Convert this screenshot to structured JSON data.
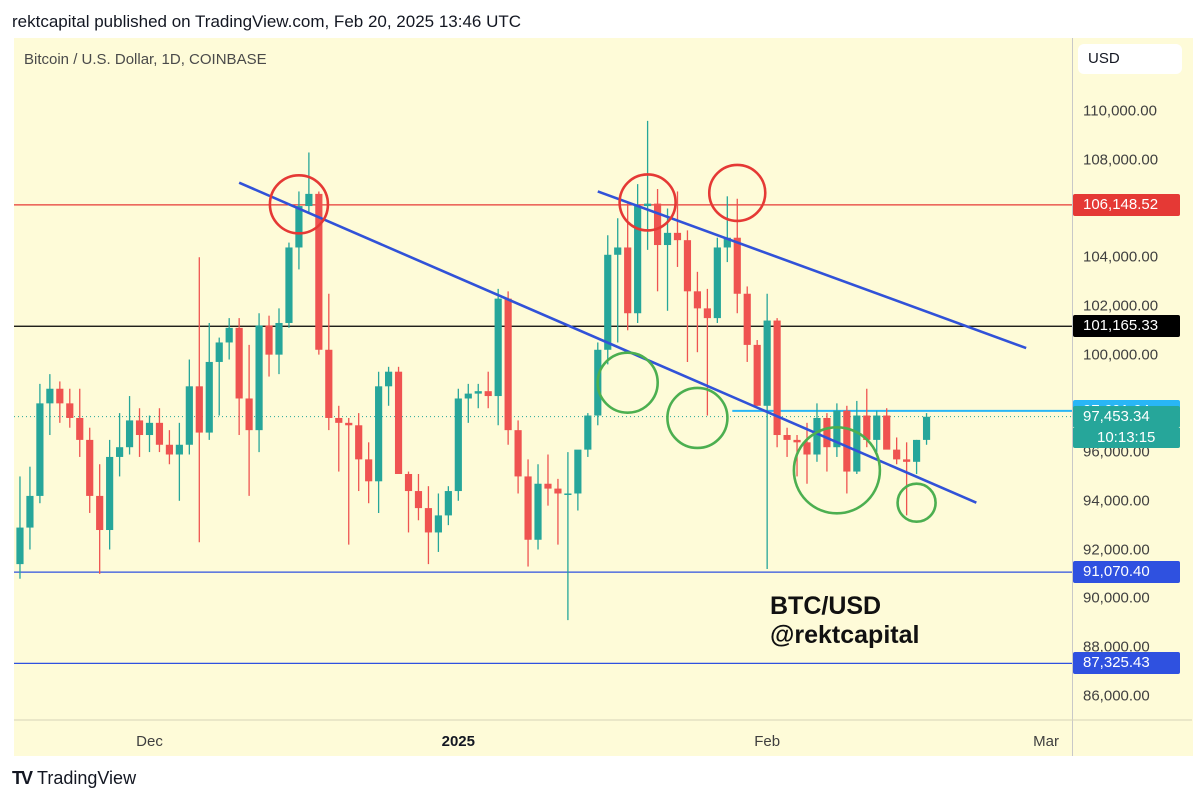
{
  "header": {
    "text": "rektcapital published on TradingView.com, Feb 20, 2025 13:46 UTC"
  },
  "chart_data": {
    "type": "candlestick",
    "title": "Bitcoin / U.S. Dollar, 1D, COINBASE",
    "currency": "USD",
    "y_ticks": [
      {
        "value": 110000,
        "label": "110,000.00"
      },
      {
        "value": 108000,
        "label": "108,000.00"
      },
      {
        "value": 104000,
        "label": "104,000.00"
      },
      {
        "value": 102000,
        "label": "102,000.00"
      },
      {
        "value": 100000,
        "label": "100,000.00"
      },
      {
        "value": 96000,
        "label": "96,000.00"
      },
      {
        "value": 94000,
        "label": "94,000.00"
      },
      {
        "value": 92000,
        "label": "92,000.00"
      },
      {
        "value": 90000,
        "label": "90,000.00"
      },
      {
        "value": 88000,
        "label": "88,000.00"
      },
      {
        "value": 86000,
        "label": "86,000.00"
      }
    ],
    "ylim": [
      85000,
      113000
    ],
    "x_ticks": [
      {
        "label": "Dec",
        "day": 13,
        "bold": false
      },
      {
        "label": "2025",
        "day": 44,
        "bold": true
      },
      {
        "label": "Feb",
        "day": 75,
        "bold": false
      },
      {
        "label": "Mar",
        "day": 103,
        "bold": false
      }
    ],
    "day_range": [
      -0.6,
      105.6
    ],
    "horizontal_levels": [
      {
        "name": "resistance-red",
        "value": 106148.52,
        "label": "106,148.52",
        "color": "#e53935"
      },
      {
        "name": "level-black",
        "value": 101165.33,
        "label": "101,165.33",
        "color": "#000000"
      },
      {
        "name": "support-blue-1",
        "value": 91070.4,
        "label": "91,070.40",
        "color": "#2f51e0"
      },
      {
        "name": "support-blue-2",
        "value": 87325.43,
        "label": "87,325.43",
        "color": "#2f51e0"
      },
      {
        "name": "level-cyan",
        "value": 97691.64,
        "label": "97,691.64",
        "color": "#29b6f6"
      }
    ],
    "last_price": {
      "value": 97453.34,
      "label": "97,453.34",
      "countdown": "10:13:15",
      "color": "#26a69a"
    },
    "trendlines": [
      {
        "name": "lower-trendline",
        "from": {
          "day": 22,
          "price": 107060
        },
        "to": {
          "day": 96,
          "price": 93920
        },
        "color": "#3152d8"
      },
      {
        "name": "upper-trendline",
        "from": {
          "day": 58,
          "price": 106700
        },
        "to": {
          "day": 101,
          "price": 100270
        },
        "color": "#3152d8"
      }
    ],
    "circles": [
      {
        "name": "red-circle-top-1",
        "day": 28,
        "price": 106170,
        "r": 29,
        "color": "#e53935"
      },
      {
        "name": "red-circle-top-2",
        "day": 63,
        "price": 106250,
        "r": 28,
        "color": "#e53935"
      },
      {
        "name": "red-circle-top-3",
        "day": 72,
        "price": 106640,
        "r": 28,
        "color": "#e53935"
      },
      {
        "name": "green-circle-1",
        "day": 61,
        "price": 98850,
        "r": 30,
        "color": "#4caf50"
      },
      {
        "name": "green-circle-2",
        "day": 68,
        "price": 97400,
        "r": 30,
        "color": "#4caf50"
      },
      {
        "name": "green-circle-3",
        "day": 82,
        "price": 95250,
        "r": 43,
        "color": "#4caf50"
      },
      {
        "name": "green-circle-4",
        "day": 90,
        "price": 93920,
        "r": 19,
        "color": "#4caf50"
      }
    ],
    "candles": [
      {
        "o": 91400,
        "h": 95000,
        "l": 90800,
        "c": 92900
      },
      {
        "o": 92900,
        "h": 95400,
        "l": 92000,
        "c": 94200
      },
      {
        "o": 94200,
        "h": 98800,
        "l": 93900,
        "c": 98000
      },
      {
        "o": 98000,
        "h": 99200,
        "l": 96700,
        "c": 98600
      },
      {
        "o": 98600,
        "h": 98900,
        "l": 97200,
        "c": 98000
      },
      {
        "o": 98000,
        "h": 98600,
        "l": 97000,
        "c": 97400
      },
      {
        "o": 97400,
        "h": 98600,
        "l": 95800,
        "c": 96500
      },
      {
        "o": 96500,
        "h": 97000,
        "l": 93500,
        "c": 94200
      },
      {
        "o": 94200,
        "h": 95500,
        "l": 91000,
        "c": 92800
      },
      {
        "o": 92800,
        "h": 96500,
        "l": 92000,
        "c": 95800
      },
      {
        "o": 95800,
        "h": 97600,
        "l": 95000,
        "c": 96200
      },
      {
        "o": 96200,
        "h": 98300,
        "l": 95900,
        "c": 97300
      },
      {
        "o": 97300,
        "h": 97800,
        "l": 95800,
        "c": 96700
      },
      {
        "o": 96700,
        "h": 97500,
        "l": 96000,
        "c": 97200
      },
      {
        "o": 97200,
        "h": 97800,
        "l": 96000,
        "c": 96300
      },
      {
        "o": 96300,
        "h": 96900,
        "l": 95500,
        "c": 95900
      },
      {
        "o": 95900,
        "h": 97200,
        "l": 94000,
        "c": 96300
      },
      {
        "o": 96300,
        "h": 99800,
        "l": 95900,
        "c": 98700
      },
      {
        "o": 98700,
        "h": 104000,
        "l": 92300,
        "c": 96800
      },
      {
        "o": 96800,
        "h": 101300,
        "l": 96500,
        "c": 99700
      },
      {
        "o": 99700,
        "h": 100700,
        "l": 97500,
        "c": 100500
      },
      {
        "o": 100500,
        "h": 101500,
        "l": 99800,
        "c": 101100
      },
      {
        "o": 101100,
        "h": 101500,
        "l": 96700,
        "c": 98200
      },
      {
        "o": 98200,
        "h": 100400,
        "l": 94200,
        "c": 96900
      },
      {
        "o": 96900,
        "h": 101700,
        "l": 96000,
        "c": 101200
      },
      {
        "o": 101200,
        "h": 101600,
        "l": 99100,
        "c": 100000
      },
      {
        "o": 100000,
        "h": 101900,
        "l": 99200,
        "c": 101300
      },
      {
        "o": 101300,
        "h": 104600,
        "l": 101100,
        "c": 104400
      },
      {
        "o": 104400,
        "h": 106700,
        "l": 103500,
        "c": 106100
      },
      {
        "o": 106100,
        "h": 108300,
        "l": 105800,
        "c": 106600
      },
      {
        "o": 106600,
        "h": 106700,
        "l": 100000,
        "c": 100200
      },
      {
        "o": 100200,
        "h": 102500,
        "l": 96900,
        "c": 97400
      },
      {
        "o": 97400,
        "h": 97900,
        "l": 95200,
        "c": 97200
      },
      {
        "o": 97200,
        "h": 97400,
        "l": 92200,
        "c": 97100
      },
      {
        "o": 97100,
        "h": 97600,
        "l": 94400,
        "c": 95700
      },
      {
        "o": 95700,
        "h": 96400,
        "l": 93900,
        "c": 94800
      },
      {
        "o": 94800,
        "h": 99300,
        "l": 93500,
        "c": 98700
      },
      {
        "o": 98700,
        "h": 99500,
        "l": 97900,
        "c": 99300
      },
      {
        "o": 99300,
        "h": 99500,
        "l": 95300,
        "c": 95100
      },
      {
        "o": 95100,
        "h": 95200,
        "l": 92700,
        "c": 94400
      },
      {
        "o": 94400,
        "h": 95100,
        "l": 93200,
        "c": 93700
      },
      {
        "o": 93700,
        "h": 94600,
        "l": 91400,
        "c": 92700
      },
      {
        "o": 92700,
        "h": 94300,
        "l": 91900,
        "c": 93400
      },
      {
        "o": 93400,
        "h": 94600,
        "l": 93000,
        "c": 94400
      },
      {
        "o": 94400,
        "h": 98600,
        "l": 94000,
        "c": 98200
      },
      {
        "o": 98200,
        "h": 98800,
        "l": 97200,
        "c": 98400
      },
      {
        "o": 98400,
        "h": 98800,
        "l": 97800,
        "c": 98500
      },
      {
        "o": 98500,
        "h": 99300,
        "l": 97800,
        "c": 98300
      },
      {
        "o": 98300,
        "h": 102700,
        "l": 97100,
        "c": 102300
      },
      {
        "o": 102300,
        "h": 102600,
        "l": 96300,
        "c": 96900
      },
      {
        "o": 96900,
        "h": 97300,
        "l": 94300,
        "c": 95000
      },
      {
        "o": 95000,
        "h": 95700,
        "l": 91300,
        "c": 92400
      },
      {
        "o": 92400,
        "h": 95500,
        "l": 92000,
        "c": 94700
      },
      {
        "o": 94700,
        "h": 95900,
        "l": 93800,
        "c": 94500
      },
      {
        "o": 94500,
        "h": 94900,
        "l": 92200,
        "c": 94300
      },
      {
        "o": 94300,
        "h": 96000,
        "l": 89100,
        "c": 94300
      },
      {
        "o": 94300,
        "h": 96000,
        "l": 93600,
        "c": 96100
      },
      {
        "o": 96100,
        "h": 97600,
        "l": 95800,
        "c": 97500
      },
      {
        "o": 97500,
        "h": 100500,
        "l": 97100,
        "c": 100200
      },
      {
        "o": 100200,
        "h": 104900,
        "l": 99600,
        "c": 104100
      },
      {
        "o": 104100,
        "h": 105600,
        "l": 100500,
        "c": 104400
      },
      {
        "o": 104400,
        "h": 106200,
        "l": 101000,
        "c": 101700
      },
      {
        "o": 101700,
        "h": 107000,
        "l": 101300,
        "c": 106100
      },
      {
        "o": 106100,
        "h": 109600,
        "l": 104300,
        "c": 106200
      },
      {
        "o": 106200,
        "h": 106800,
        "l": 102600,
        "c": 104500
      },
      {
        "o": 104500,
        "h": 106000,
        "l": 101800,
        "c": 105000
      },
      {
        "o": 105000,
        "h": 106700,
        "l": 103600,
        "c": 104700
      },
      {
        "o": 104700,
        "h": 105100,
        "l": 99700,
        "c": 102600
      },
      {
        "o": 102600,
        "h": 103400,
        "l": 100100,
        "c": 101900
      },
      {
        "o": 101900,
        "h": 102700,
        "l": 97500,
        "c": 101500
      },
      {
        "o": 101500,
        "h": 104800,
        "l": 101300,
        "c": 104400
      },
      {
        "o": 104400,
        "h": 106500,
        "l": 103800,
        "c": 104800
      },
      {
        "o": 104800,
        "h": 106400,
        "l": 101700,
        "c": 102500
      },
      {
        "o": 102500,
        "h": 102800,
        "l": 99700,
        "c": 100400
      },
      {
        "o": 100400,
        "h": 100600,
        "l": 97900,
        "c": 97900
      },
      {
        "o": 97900,
        "h": 102500,
        "l": 91200,
        "c": 101400
      },
      {
        "o": 101400,
        "h": 101500,
        "l": 96200,
        "c": 96700
      },
      {
        "o": 96700,
        "h": 97000,
        "l": 95800,
        "c": 96500
      },
      {
        "o": 96500,
        "h": 96700,
        "l": 95000,
        "c": 96400
      },
      {
        "o": 96400,
        "h": 97200,
        "l": 94700,
        "c": 95900
      },
      {
        "o": 95900,
        "h": 98000,
        "l": 95600,
        "c": 97400
      },
      {
        "o": 97400,
        "h": 97600,
        "l": 95200,
        "c": 96200
      },
      {
        "o": 96200,
        "h": 98000,
        "l": 95800,
        "c": 97700
      },
      {
        "o": 97700,
        "h": 97900,
        "l": 94300,
        "c": 95200
      },
      {
        "o": 95200,
        "h": 98100,
        "l": 95100,
        "c": 97500
      },
      {
        "o": 97500,
        "h": 98600,
        "l": 96200,
        "c": 96500
      },
      {
        "o": 96500,
        "h": 97700,
        "l": 96000,
        "c": 97500
      },
      {
        "o": 97500,
        "h": 97800,
        "l": 96200,
        "c": 96100
      },
      {
        "o": 96100,
        "h": 96600,
        "l": 95500,
        "c": 95700
      },
      {
        "o": 95700,
        "h": 96400,
        "l": 93400,
        "c": 95600
      },
      {
        "o": 95600,
        "h": 96500,
        "l": 95100,
        "c": 96500
      },
      {
        "o": 96500,
        "h": 97600,
        "l": 96300,
        "c": 97450
      }
    ]
  },
  "watermark": {
    "line1": "BTC/USD",
    "line2": "@rektcapital"
  },
  "footer": {
    "logo_text": "TV",
    "brand": "TradingView"
  }
}
